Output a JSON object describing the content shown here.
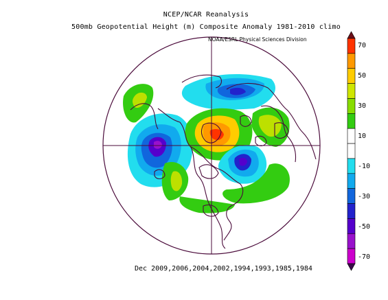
{
  "header": {
    "line1": "NCEP/NCAR Reanalysis",
    "line2": "500mb Geopotential Height (m) Composite Anomaly 1981-2010 climo",
    "credit": "NOAA/ESRL Physical Sciences Division"
  },
  "caption": "Dec 2009,2006,2004,2002,1994,1993,1985,1984",
  "colorbar": {
    "labels": [
      "70",
      "50",
      "30",
      "10",
      "-10",
      "-30",
      "-50",
      "-70"
    ],
    "colors": [
      "#6b0f1a",
      "#ff3300",
      "#ff9900",
      "#ffcc00",
      "#cfe600",
      "#88dd00",
      "#33cc11",
      "#ffffff",
      "#ffffff",
      "#22ddee",
      "#11aaee",
      "#1166dd",
      "#2222cc",
      "#5500cc",
      "#9911cc",
      "#cc00cc",
      "#3a0a4a"
    ]
  },
  "map": {
    "projection": "north-polar-stereographic",
    "colors": {
      "outline": "#4a0a3a",
      "strong_positive": "#ff3300",
      "positive": "#ff9900",
      "weak_positive": "#ffcc00",
      "mild_positive": "#bde000",
      "light_positive": "#33cc11",
      "light_negative": "#22ddee",
      "mild_negative": "#11aaee",
      "negative": "#1166dd",
      "strong_negative": "#2222cc",
      "very_negative": "#7711cc"
    }
  }
}
